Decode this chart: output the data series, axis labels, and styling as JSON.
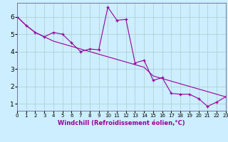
{
  "xlabel": "Windchill (Refroidissement éolien,°C)",
  "bg_color": "#cceeff",
  "line_color": "#990099",
  "grid_color": "#aacccc",
  "x_data": [
    0,
    1,
    2,
    3,
    4,
    5,
    6,
    7,
    8,
    9,
    10,
    11,
    12,
    13,
    14,
    15,
    16,
    17,
    18,
    19,
    20,
    21,
    22,
    23
  ],
  "y_data1": [
    6.0,
    5.5,
    5.1,
    4.85,
    5.1,
    5.0,
    4.5,
    4.0,
    4.15,
    4.1,
    6.55,
    5.8,
    5.85,
    3.35,
    3.5,
    2.35,
    2.5,
    1.6,
    1.55,
    1.55,
    1.3,
    0.85,
    1.1,
    1.4
  ],
  "y_data2": [
    6.0,
    5.5,
    5.1,
    4.85,
    4.6,
    4.45,
    4.3,
    4.15,
    4.0,
    3.85,
    3.7,
    3.55,
    3.4,
    3.25,
    3.1,
    2.6,
    2.45,
    2.3,
    2.15,
    2.0,
    1.85,
    1.7,
    1.55,
    1.4
  ],
  "xlim": [
    0,
    23
  ],
  "ylim": [
    0.6,
    6.8
  ],
  "yticks": [
    1,
    2,
    3,
    4,
    5,
    6
  ],
  "xticks": [
    0,
    1,
    2,
    3,
    4,
    5,
    6,
    7,
    8,
    9,
    10,
    11,
    12,
    13,
    14,
    15,
    16,
    17,
    18,
    19,
    20,
    21,
    22,
    23
  ],
  "xlabel_color": "#990099",
  "xlabel_fontsize": 6.0,
  "ytick_fontsize": 6.5,
  "xtick_fontsize": 5.0
}
